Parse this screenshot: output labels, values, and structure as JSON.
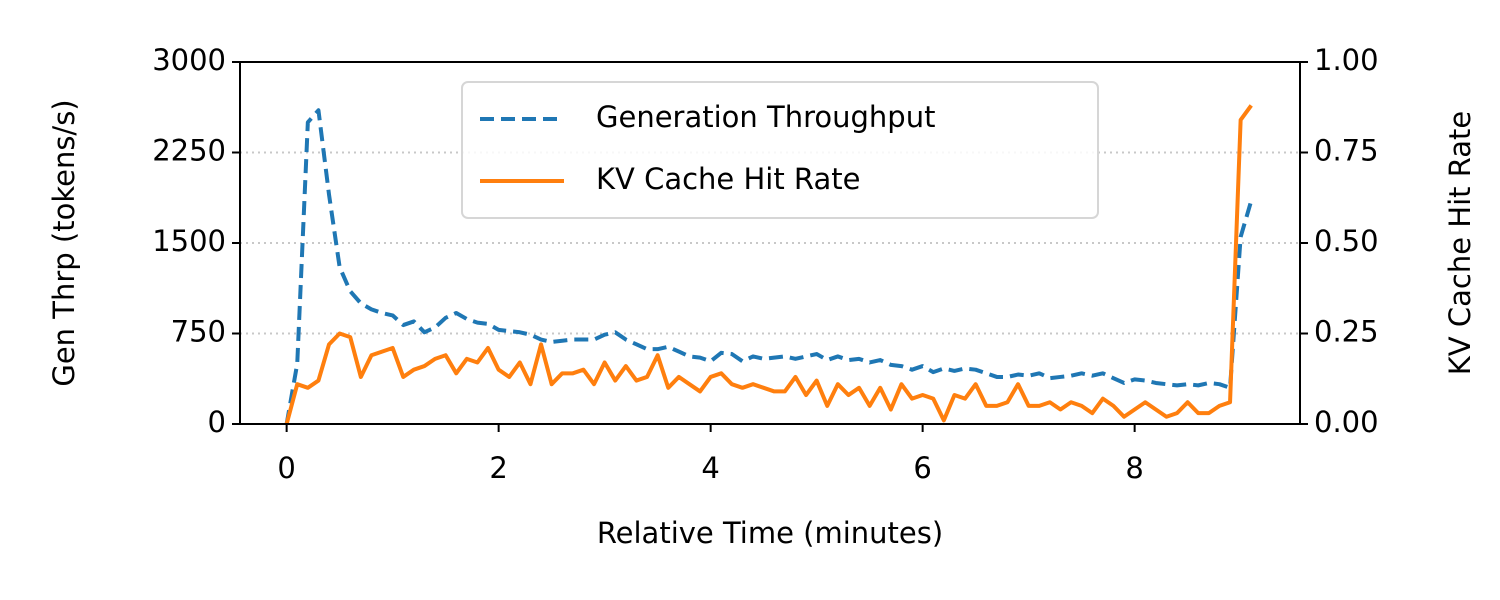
{
  "chart_data": {
    "type": "line",
    "xlabel": "Relative Time (minutes)",
    "ylabel": "Gen Thrp (tokens/s)",
    "y2label": "KV Cache Hit Rate",
    "legend": "upper center",
    "grid": true,
    "xlim": [
      -0.44,
      9.56
    ],
    "xticks": [
      0,
      2,
      4,
      6,
      8
    ],
    "ylim": [
      0,
      3000
    ],
    "yticks": [
      0,
      750,
      1500,
      2250,
      3000
    ],
    "y2lim": [
      0,
      1
    ],
    "y2ticks": [
      {
        "value": 0,
        "label": "0.00"
      },
      {
        "value": 0.25,
        "label": "0.25"
      },
      {
        "value": 0.5,
        "label": "0.50"
      },
      {
        "value": 0.75,
        "label": "0.75"
      },
      {
        "value": 1,
        "label": "1.00"
      }
    ],
    "x": [
      0,
      0.1,
      0.2,
      0.3,
      0.4,
      0.5,
      0.6,
      0.7,
      0.8,
      0.9,
      1.0,
      1.1,
      1.2,
      1.3,
      1.4,
      1.5,
      1.6,
      1.7,
      1.8,
      1.9,
      2.0,
      2.1,
      2.2,
      2.3,
      2.4,
      2.5,
      2.6,
      2.7,
      2.8,
      2.9,
      3.0,
      3.1,
      3.2,
      3.3,
      3.4,
      3.5,
      3.6,
      3.7,
      3.8,
      3.9,
      4.0,
      4.1,
      4.2,
      4.3,
      4.4,
      4.5,
      4.6,
      4.7,
      4.8,
      4.9,
      5.0,
      5.1,
      5.2,
      5.3,
      5.4,
      5.5,
      5.6,
      5.7,
      5.8,
      5.9,
      6.0,
      6.1,
      6.2,
      6.3,
      6.4,
      6.5,
      6.6,
      6.7,
      6.8,
      6.9,
      7.0,
      7.1,
      7.2,
      7.3,
      7.4,
      7.5,
      7.6,
      7.7,
      7.8,
      7.9,
      8.0,
      8.1,
      8.2,
      8.3,
      8.4,
      8.5,
      8.6,
      8.7,
      8.8,
      8.9,
      9.0,
      9.1
    ],
    "series": [
      {
        "name": "Generation Throughput",
        "color": "#1f77b4",
        "linestyle": "dashed",
        "values": [
          0,
          500,
          2500,
          2600,
          1900,
          1300,
          1100,
          1000,
          950,
          920,
          900,
          820,
          850,
          760,
          800,
          880,
          920,
          870,
          840,
          830,
          780,
          770,
          760,
          740,
          700,
          680,
          690,
          700,
          700,
          700,
          740,
          760,
          700,
          660,
          620,
          620,
          640,
          600,
          560,
          550,
          520,
          590,
          580,
          520,
          560,
          540,
          550,
          560,
          540,
          560,
          580,
          530,
          560,
          530,
          540,
          510,
          530,
          490,
          480,
          450,
          480,
          430,
          460,
          440,
          460,
          450,
          420,
          390,
          390,
          410,
          400,
          420,
          380,
          390,
          400,
          420,
          400,
          420,
          380,
          340,
          370,
          360,
          340,
          330,
          320,
          330,
          320,
          340,
          330,
          300,
          1550,
          1850
        ]
      },
      {
        "name": "KV Cache Hit Rate",
        "color": "#ff7f0e",
        "linestyle": "solid",
        "axis": "y2",
        "values": [
          0,
          0.11,
          0.1,
          0.12,
          0.22,
          0.25,
          0.24,
          0.13,
          0.19,
          0.2,
          0.21,
          0.13,
          0.15,
          0.16,
          0.18,
          0.19,
          0.14,
          0.18,
          0.17,
          0.21,
          0.15,
          0.13,
          0.17,
          0.11,
          0.22,
          0.11,
          0.14,
          0.14,
          0.15,
          0.11,
          0.17,
          0.12,
          0.16,
          0.12,
          0.13,
          0.19,
          0.1,
          0.13,
          0.11,
          0.09,
          0.13,
          0.14,
          0.11,
          0.1,
          0.11,
          0.1,
          0.09,
          0.09,
          0.13,
          0.08,
          0.12,
          0.05,
          0.11,
          0.08,
          0.1,
          0.05,
          0.1,
          0.04,
          0.11,
          0.07,
          0.08,
          0.07,
          0.01,
          0.08,
          0.07,
          0.11,
          0.05,
          0.05,
          0.06,
          0.11,
          0.05,
          0.05,
          0.06,
          0.04,
          0.06,
          0.05,
          0.03,
          0.07,
          0.05,
          0.02,
          0.04,
          0.06,
          0.04,
          0.02,
          0.03,
          0.06,
          0.03,
          0.03,
          0.05,
          0.06,
          0.84,
          0.88
        ]
      }
    ]
  }
}
